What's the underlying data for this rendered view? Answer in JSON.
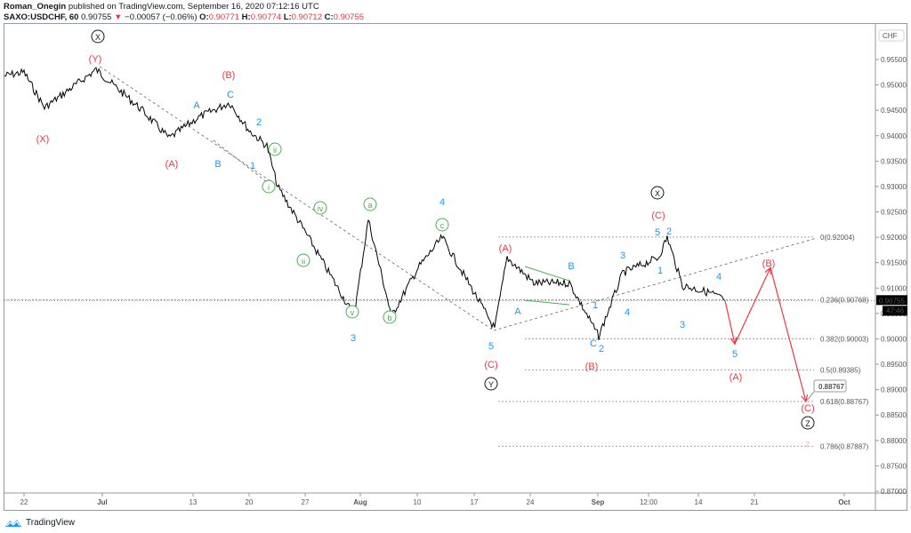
{
  "header": {
    "author": "Roman_Onegin",
    "published_text": "published on TradingView.com, September 16, 2020 07:12:16 UTC",
    "symbol": "SAXO:USDCHF, 60",
    "last": "0.90755",
    "change_arrow": "▼",
    "change": "−0.00057 (−0.06%)",
    "o_label": "O:",
    "o": "0.90771",
    "h_label": "H:",
    "h": "0.90774",
    "l_label": "L:",
    "l": "0.90712",
    "c_label": "C:",
    "c": "0.90755"
  },
  "price_axis": {
    "currency": "CHF",
    "current_price": "0.90755",
    "countdown": "47:46",
    "ticks": [
      "0.95500",
      "0.95000",
      "0.94500",
      "0.94000",
      "0.93500",
      "0.93000",
      "0.92500",
      "0.92000",
      "0.91500",
      "0.91000",
      "0.90500",
      "0.90000",
      "0.89500",
      "0.89000",
      "0.88500",
      "0.88000",
      "0.87500",
      "0.87000"
    ]
  },
  "time_axis": {
    "ticks": [
      "22",
      "Jul",
      "13",
      "20",
      "27",
      "Aug",
      "10",
      "17",
      "24",
      "Sep",
      "12:00",
      "14",
      "21",
      "Oct"
    ]
  },
  "fib_levels": [
    {
      "label": "0(0.92004)"
    },
    {
      "label": "0.236(0.90768)"
    },
    {
      "label": "0.382(0.90003)"
    },
    {
      "label": "0.5(0.89385)"
    },
    {
      "label": "0.618(0.88767)"
    },
    {
      "label": "0.786(0.87887)"
    }
  ],
  "target_callout": "0.88767",
  "footer": {
    "brand": "TradingView"
  },
  "colors": {
    "red": "#f23645",
    "blue": "#2196f3",
    "green": "#4caf50",
    "black": "#131722"
  },
  "chart_data": {
    "type": "line",
    "title": "SAXO:USDCHF, 60",
    "xlabel": "",
    "ylabel": "CHF",
    "ylim": [
      0.8685,
      0.9605
    ],
    "x": [
      "Jun 19",
      "Jun 22",
      "Jun 26",
      "Jul 1",
      "Jul 6",
      "Jul 10",
      "Jul 14",
      "Jul 17",
      "Jul 20",
      "Jul 22",
      "Jul 24",
      "Jul 27",
      "Jul 31",
      "Aug 3",
      "Aug 6",
      "Aug 10",
      "Aug 13",
      "Aug 17",
      "Aug 19",
      "Aug 21",
      "Aug 24",
      "Aug 28",
      "Sep 1",
      "Sep 3",
      "Sep 7",
      "Sep 10",
      "Sep 11",
      "Sep 14",
      "Sep 16"
    ],
    "values": [
      0.9518,
      0.9525,
      0.9455,
      0.953,
      0.945,
      0.9395,
      0.9435,
      0.9465,
      0.941,
      0.938,
      0.93,
      0.9205,
      0.9045,
      0.9235,
      0.9045,
      0.914,
      0.92,
      0.91,
      0.902,
      0.916,
      0.911,
      0.911,
      0.9005,
      0.913,
      0.916,
      0.92,
      0.9105,
      0.909,
      0.90755
    ],
    "grid": false,
    "annotations": {
      "wave_labels": [
        "(X) circle",
        "(Y)",
        "(X)",
        "(B)",
        "(A)",
        "A",
        "B",
        "C",
        "1",
        "2",
        "i",
        "ii",
        "iii",
        "iv",
        "v",
        "a",
        "b",
        "c",
        "3",
        "4",
        "5",
        "(C)",
        "(Y) circle",
        "(A)",
        "A",
        "B",
        "C",
        "2",
        "1",
        "3",
        "4",
        "5",
        "2",
        "(C)",
        "(X) circle",
        "3",
        "4",
        "(B)",
        "(A)",
        "5",
        "(C)",
        "(Z) circle"
      ],
      "projection": [
        {
          "label": "5",
          "value": 0.899
        },
        {
          "label": "(B)",
          "value": 0.914
        },
        {
          "label": "(C)",
          "value": 0.88767
        }
      ],
      "fibonacci": {
        "0": 0.92004,
        "0.236": 0.90768,
        "0.382": 0.90003,
        "0.5": 0.89385,
        "0.618": 0.88767,
        "0.786": 0.87887
      },
      "current_price_line": 0.90755
    }
  }
}
